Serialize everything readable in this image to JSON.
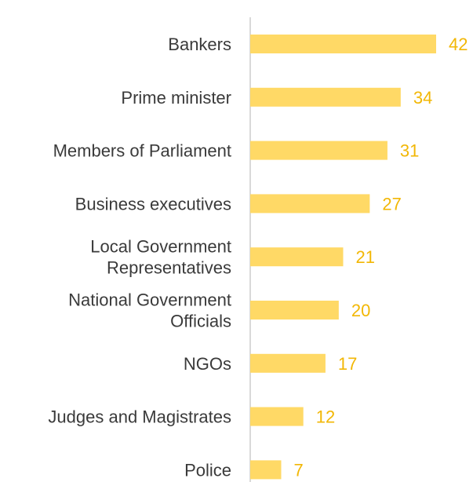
{
  "chart_data": {
    "type": "bar",
    "orientation": "horizontal",
    "title": "",
    "xlabel": "",
    "ylabel": "",
    "categories": [
      [
        "Bankers"
      ],
      [
        "Prime minister"
      ],
      [
        "Members of Parliament"
      ],
      [
        "Business executives"
      ],
      [
        "Local Government",
        "Representatives"
      ],
      [
        "National Government",
        "Officials"
      ],
      [
        "NGOs"
      ],
      [
        "Judges and Magistrates"
      ],
      [
        "Police"
      ]
    ],
    "values": [
      42,
      34,
      31,
      27,
      21,
      20,
      17,
      12,
      7
    ],
    "xlim": [
      0,
      42
    ],
    "grid": false,
    "legend": "none",
    "colors": {
      "bar": "#FFD966",
      "value_label": "#F2B705",
      "category_label": "#3a3a3a",
      "axis_line": "#d9d9d9"
    }
  }
}
